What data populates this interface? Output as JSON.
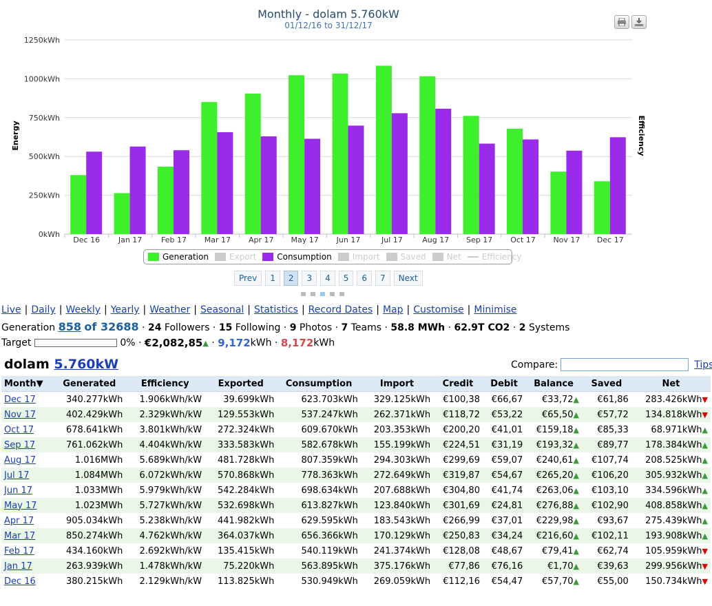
{
  "chart_data": {
    "type": "bar",
    "title": "Monthly - dolam 5.760kW",
    "subtitle": "01/12/16 to 31/12/17",
    "ylabel": "Energy",
    "y2label": "Efficiency",
    "ylim": [
      0,
      1250
    ],
    "yticks": [
      "0kWh",
      "250kWh",
      "500kWh",
      "750kWh",
      "1000kWh",
      "1250kWh"
    ],
    "categories": [
      "Dec 16",
      "Jan 17",
      "Feb 17",
      "Mar 17",
      "Apr 17",
      "May 17",
      "Jun 17",
      "Jul 17",
      "Aug 17",
      "Sep 17",
      "Oct 17",
      "Nov 17",
      "Dec 17"
    ],
    "series": [
      {
        "name": "Generation",
        "color": "#3ef02b",
        "values": [
          380.215,
          263.939,
          434.16,
          850.274,
          905.034,
          1023,
          1033,
          1084,
          1016,
          761.062,
          678.641,
          402.429,
          340.277
        ]
      },
      {
        "name": "Consumption",
        "color": "#9b2bea",
        "values": [
          530.949,
          563.895,
          540.119,
          656.366,
          629.595,
          613.827,
          698.634,
          778.363,
          807.359,
          582.678,
          609.67,
          537.247,
          623.703
        ]
      }
    ],
    "legend": [
      "Generation",
      "Export",
      "Consumption",
      "Import",
      "Saved",
      "Net",
      "Efficiency"
    ],
    "legend_active": [
      true,
      false,
      true,
      false,
      false,
      false,
      false
    ],
    "legend_position": "bottom-center",
    "grid": true
  },
  "chart_pager": {
    "prev": "Prev",
    "pages": [
      "1",
      "2",
      "3",
      "4",
      "5",
      "6",
      "7"
    ],
    "active": "2",
    "next": "Next"
  },
  "nav": [
    "Live",
    "Daily",
    "Weekly",
    "Yearly",
    "Weather",
    "Seasonal",
    "Statistics",
    "Record Dates",
    "Map",
    "Customise",
    "Minimise"
  ],
  "stats": {
    "generation_label": "Generation",
    "rank": "858",
    "of_total": "of 32688",
    "followers_n": "24",
    "followers_label": "Followers",
    "following_n": "15",
    "following_label": "Following",
    "photos_n": "9",
    "photos_label": "Photos",
    "teams_n": "7",
    "teams_label": "Teams",
    "mwh": "58.8 MWh",
    "co2": "62.9T CO2",
    "systems_n": "2",
    "systems_label": "Systems"
  },
  "target": {
    "label": "Target",
    "progress": 0,
    "percent": "0%",
    "money": "€2,082,85",
    "blue_val": "9,172",
    "unit1": "kWh",
    "red_val": "8,172",
    "unit2": "kWh"
  },
  "system": {
    "name": "dolam",
    "size": "5.760kW"
  },
  "compare": {
    "label": "Compare:",
    "tips": "Tips"
  },
  "table": {
    "headers": [
      "Month▼",
      "Generated",
      "Efficiency",
      "Exported",
      "Consumption",
      "Import",
      "Credit",
      "Debit",
      "Balance",
      "Saved",
      "Net"
    ],
    "rows": [
      {
        "month": "Dec 17",
        "gen": "340.277kWh",
        "eff": "1.906kWh/kW",
        "exp": "39.699kWh",
        "cons": "623.703kWh",
        "imp": "329.125kWh",
        "credit": "€100,38",
        "debit": "€66,67",
        "bal": "€33,72",
        "saved": "€61,86",
        "net": "283.426kWh",
        "net_dir": "down"
      },
      {
        "month": "Nov 17",
        "gen": "402.429kWh",
        "eff": "2.329kWh/kW",
        "exp": "129.553kWh",
        "cons": "537.247kWh",
        "imp": "262.371kWh",
        "credit": "€118,72",
        "debit": "€53,22",
        "bal": "€65,50",
        "saved": "€57,72",
        "net": "134.818kWh",
        "net_dir": "down"
      },
      {
        "month": "Oct 17",
        "gen": "678.641kWh",
        "eff": "3.801kWh/kW",
        "exp": "272.324kWh",
        "cons": "609.670kWh",
        "imp": "203.353kWh",
        "credit": "€200,20",
        "debit": "€41,01",
        "bal": "€159,18",
        "saved": "€85,33",
        "net": "68.971kWh",
        "net_dir": "up"
      },
      {
        "month": "Sep 17",
        "gen": "761.062kWh",
        "eff": "4.404kWh/kW",
        "exp": "333.583kWh",
        "cons": "582.678kWh",
        "imp": "155.199kWh",
        "credit": "€224,51",
        "debit": "€31,19",
        "bal": "€193,32",
        "saved": "€89,77",
        "net": "178.384kWh",
        "net_dir": "up"
      },
      {
        "month": "Aug 17",
        "gen": "1.016MWh",
        "eff": "5.689kWh/kW",
        "exp": "481.728kWh",
        "cons": "807.359kWh",
        "imp": "294.303kWh",
        "credit": "€299,69",
        "debit": "€59,07",
        "bal": "€240,61",
        "saved": "€107,74",
        "net": "208.525kWh",
        "net_dir": "up"
      },
      {
        "month": "Jul 17",
        "gen": "1.084MWh",
        "eff": "6.072kWh/kW",
        "exp": "570.868kWh",
        "cons": "778.363kWh",
        "imp": "272.649kWh",
        "credit": "€319,87",
        "debit": "€54,67",
        "bal": "€265,20",
        "saved": "€106,20",
        "net": "305.932kWh",
        "net_dir": "up"
      },
      {
        "month": "Jun 17",
        "gen": "1.033MWh",
        "eff": "5.979kWh/kW",
        "exp": "542.284kWh",
        "cons": "698.634kWh",
        "imp": "207.688kWh",
        "credit": "€304,80",
        "debit": "€41,74",
        "bal": "€263,06",
        "saved": "€103,10",
        "net": "334.596kWh",
        "net_dir": "up"
      },
      {
        "month": "May 17",
        "gen": "1.023MWh",
        "eff": "5.727kWh/kW",
        "exp": "532.698kWh",
        "cons": "613.827kWh",
        "imp": "123.840kWh",
        "credit": "€301,69",
        "debit": "€24,81",
        "bal": "€276,88",
        "saved": "€102,90",
        "net": "408.858kWh",
        "net_dir": "up"
      },
      {
        "month": "Apr 17",
        "gen": "905.034kWh",
        "eff": "5.238kWh/kW",
        "exp": "441.982kWh",
        "cons": "629.595kWh",
        "imp": "183.543kWh",
        "credit": "€266,99",
        "debit": "€37,01",
        "bal": "€229,98",
        "saved": "€93,67",
        "net": "275.439kWh",
        "net_dir": "up"
      },
      {
        "month": "Mar 17",
        "gen": "850.274kWh",
        "eff": "4.762kWh/kW",
        "exp": "364.037kWh",
        "cons": "656.366kWh",
        "imp": "170.129kWh",
        "credit": "€250,83",
        "debit": "€34,24",
        "bal": "€216,60",
        "saved": "€102,11",
        "net": "193.908kWh",
        "net_dir": "up"
      },
      {
        "month": "Feb 17",
        "gen": "434.160kWh",
        "eff": "2.692kWh/kW",
        "exp": "135.415kWh",
        "cons": "540.119kWh",
        "imp": "241.374kWh",
        "credit": "€128,08",
        "debit": "€48,67",
        "bal": "€79,41",
        "saved": "€62,74",
        "net": "105.959kWh",
        "net_dir": "down"
      },
      {
        "month": "Jan 17",
        "gen": "263.939kWh",
        "eff": "1.478kWh/kW",
        "exp": "75.220kWh",
        "cons": "563.895kWh",
        "imp": "375.176kWh",
        "credit": "€77,86",
        "debit": "€76,16",
        "bal": "€1,70",
        "saved": "€39,63",
        "net": "299.956kWh",
        "net_dir": "down"
      },
      {
        "month": "Dec 16",
        "gen": "380.215kWh",
        "eff": "2.129kWh/kW",
        "exp": "113.825kWh",
        "cons": "530.949kWh",
        "imp": "269.059kWh",
        "credit": "€112,16",
        "debit": "€54,47",
        "bal": "€57,70",
        "saved": "€55,00",
        "net": "150.734kWh",
        "net_dir": "down"
      }
    ]
  }
}
